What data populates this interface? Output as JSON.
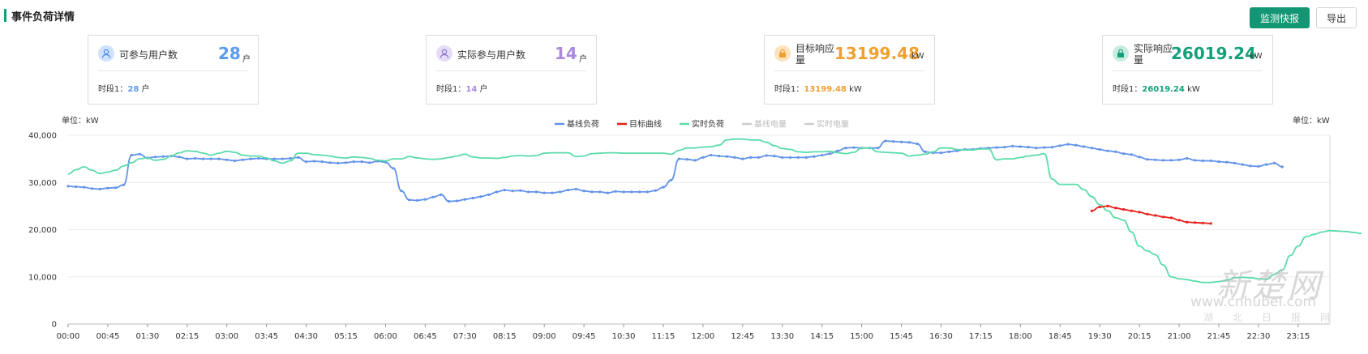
{
  "header": {
    "title": "事件负荷详情",
    "monitor_button": "监测快报",
    "export_button": "导出"
  },
  "colors": {
    "accent": "#13a07a",
    "blue": "#5b9bef",
    "purple": "#a98ade",
    "orange": "#f0a030",
    "green": "#13a07a",
    "baseline": "#6393e8",
    "target": "#e8201b",
    "realtime": "#5bdcaa",
    "disabled": "#c9c9c9"
  },
  "cards": [
    {
      "icon": "user-icon",
      "label": "可参与用户数",
      "value": "28",
      "unit": "户",
      "period_label": "时段1：",
      "period_value": "28",
      "period_unit": "户"
    },
    {
      "icon": "user-icon",
      "label": "实际参与用户数",
      "value": "14",
      "unit": "户",
      "period_label": "时段1：",
      "period_value": "14",
      "period_unit": "户"
    },
    {
      "icon": "lock-icon",
      "label": "目标响应量",
      "value": "13199.48",
      "unit": "kW",
      "period_label": "时段1：",
      "period_value": "13199.48",
      "period_unit": "kW"
    },
    {
      "icon": "lock-icon",
      "label": "实际响应量",
      "value": "26019.24",
      "unit": "kW",
      "period_label": "时段1：",
      "period_value": "26019.24",
      "period_unit": "kW"
    }
  ],
  "watermark": {
    "main": "新楚网",
    "url": "www.cnhubei.com",
    "sub": "湖北日报网"
  },
  "chart_data": {
    "type": "line",
    "unit_left": "单位：kW",
    "unit_right": "单位：kW",
    "ylim": [
      0,
      40000
    ],
    "yticks": [
      "0",
      "10,000",
      "20,000",
      "30,000",
      "40,000"
    ],
    "xticks": [
      "00:00",
      "00:45",
      "01:30",
      "02:15",
      "03:00",
      "03:45",
      "04:30",
      "05:15",
      "06:00",
      "06:45",
      "07:30",
      "08:15",
      "09:00",
      "09:45",
      "10:30",
      "11:15",
      "12:00",
      "12:45",
      "13:30",
      "14:15",
      "15:00",
      "15:45",
      "16:30",
      "17:15",
      "18:00",
      "18:45",
      "19:30",
      "20:15",
      "21:00",
      "21:45",
      "22:30",
      "23:15"
    ],
    "grid": "horizontal",
    "legend_position": "top-center",
    "legend": [
      {
        "name": "基线负荷",
        "color": "#6393e8",
        "enabled": true
      },
      {
        "name": "目标曲线",
        "color": "#e8201b",
        "enabled": true
      },
      {
        "name": "实时负荷",
        "color": "#5bdcaa",
        "enabled": true
      },
      {
        "name": "基线电量",
        "color": "#c9c9c9",
        "enabled": false
      },
      {
        "name": "实时电量",
        "color": "#c9c9c9",
        "enabled": false
      }
    ],
    "series": [
      {
        "name": "基线负荷",
        "color": "#6393e8",
        "start_index": 0,
        "values": [
          29200,
          29100,
          29000,
          28700,
          28600,
          28800,
          28900,
          29500,
          35800,
          36000,
          35200,
          35400,
          35500,
          35600,
          35400,
          35000,
          35100,
          35000,
          35000,
          35000,
          34800,
          34600,
          34800,
          35000,
          35100,
          35000,
          35000,
          35000,
          35100,
          35300,
          34400,
          34500,
          34400,
          34200,
          34100,
          34200,
          34400,
          34400,
          34200,
          34500,
          34300,
          33000,
          28200,
          26300,
          26200,
          26400,
          26900,
          27400,
          26000,
          26100,
          26400,
          26700,
          27000,
          27400,
          28000,
          28400,
          28200,
          28300,
          28000,
          28000,
          27800,
          27800,
          28000,
          28400,
          28600,
          28200,
          28000,
          28000,
          27800,
          28100,
          28000,
          28000,
          28000,
          28000,
          28300,
          29000,
          30500,
          35000,
          34900,
          34700,
          35300,
          35800,
          35600,
          35500,
          35300,
          35000,
          35300,
          35300,
          35700,
          35600,
          35300,
          35300,
          35300,
          35300,
          35500,
          35800,
          36100,
          36700,
          37300,
          37400,
          37300,
          37300,
          37300,
          38800,
          38700,
          38600,
          38500,
          38200,
          36500,
          36300,
          36300,
          36500,
          36700,
          37000,
          37000,
          37200,
          37300,
          37400,
          37500,
          37700,
          37600,
          37500,
          37300,
          37400,
          37500,
          37800,
          38100,
          37900,
          37600,
          37300,
          37000,
          36700,
          36500,
          36100,
          35900,
          35400,
          34900,
          34800,
          34700,
          34700,
          34800,
          35100,
          34700,
          34600,
          34600,
          34400,
          34300,
          34100,
          33800,
          33500,
          33400,
          33800,
          34100,
          33300
        ]
      },
      {
        "name": "实时负荷",
        "color": "#5bdcaa",
        "start_index": 0,
        "values": [
          31800,
          32700,
          33300,
          32600,
          31900,
          32200,
          32600,
          33500,
          34200,
          35000,
          35200,
          34700,
          34900,
          35600,
          36300,
          36700,
          36600,
          36200,
          35800,
          36200,
          36600,
          36400,
          35800,
          35600,
          35600,
          35200,
          34600,
          34100,
          34600,
          36200,
          36200,
          35900,
          35800,
          35600,
          35300,
          35200,
          35400,
          35300,
          35100,
          34700,
          34600,
          35000,
          35000,
          35500,
          35200,
          35000,
          34900,
          35000,
          35300,
          35600,
          36000,
          35400,
          35200,
          35200,
          35100,
          35300,
          35600,
          35700,
          35600,
          35700,
          36200,
          36300,
          36300,
          36300,
          35500,
          35600,
          36100,
          36200,
          36300,
          36300,
          36200,
          36200,
          36200,
          36200,
          36200,
          36200,
          36000,
          36800,
          37300,
          37300,
          37500,
          37600,
          37900,
          39000,
          39200,
          39200,
          39000,
          39000,
          38500,
          37800,
          37200,
          37000,
          36500,
          36400,
          36500,
          36500,
          36600,
          36300,
          36100,
          36400,
          37300,
          37300,
          36500,
          36400,
          36300,
          36200,
          35600,
          35800,
          36000,
          36500,
          37300,
          37300,
          37000,
          36900,
          36900,
          37100,
          37100,
          34800,
          35000,
          35000,
          35300,
          35600,
          35800,
          36100,
          30700,
          29600,
          29600,
          29600,
          28500,
          27000,
          25300,
          24000,
          22500,
          22000,
          19500,
          16500,
          15500,
          14700,
          12500,
          10000,
          9600,
          9400,
          9100,
          8800,
          8800,
          9000,
          9300,
          9800,
          9900,
          9800,
          9600,
          9500,
          10500,
          11500,
          14500,
          16500,
          18500,
          19000,
          19500,
          19800,
          19700,
          19600,
          19400,
          19200
        ]
      },
      {
        "name": "目标曲线",
        "color": "#e8201b",
        "start_index": 129,
        "values": [
          24000,
          24800,
          25000,
          24600,
          24300,
          24000,
          23700,
          23300,
          23000,
          22700,
          22500,
          22000,
          21600,
          21500,
          21400,
          21300
        ]
      }
    ],
    "n_points": 160
  }
}
